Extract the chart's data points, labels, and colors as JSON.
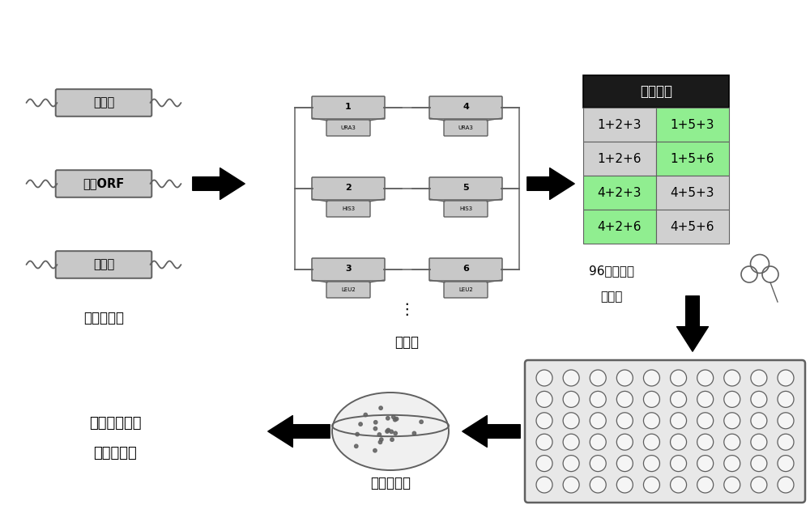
{
  "bg_color": "#ffffff",
  "black": "#000000",
  "dark_gray": "#606060",
  "light_gray": "#c8c8c8",
  "box_gray": "#b8b8b8",
  "table_header_bg": "#1a1a1a",
  "table_header_fg": "#ffffff",
  "table_cell_bg": "#d0d0d0",
  "table_green_bg": "#90ee90",
  "component_labels": [
    "启动子",
    "基因ORF",
    "终止子"
  ],
  "module_numbers_left": [
    "1",
    "2",
    "3"
  ],
  "module_markers_left": [
    "URA3",
    "HIS3",
    "LEU2"
  ],
  "module_numbers_right": [
    "4",
    "5",
    "6"
  ],
  "module_markers_right": [
    "URA3",
    "HIS3",
    "LEU2"
  ],
  "table_title": "排列组合",
  "table_rows": [
    [
      "1+2+3",
      "1+5+3"
    ],
    [
      "1+2+6",
      "1+5+6"
    ],
    [
      "4+2+3",
      "4+5+3"
    ],
    [
      "4+2+6",
      "4+5+6"
    ]
  ],
  "table_green_cells": [
    [
      0,
      1
    ],
    [
      1,
      1
    ],
    [
      2,
      0
    ],
    [
      3,
      0
    ]
  ],
  "label_components": "待筛选元件",
  "label_modules": "模块库",
  "label_96well_line1": "96孔板质粒",
  "label_96well_line2": "共转化",
  "label_correct": "正确转化子",
  "label_select_line1": "筛选高效模块",
  "label_select_line2": "组合转化子"
}
